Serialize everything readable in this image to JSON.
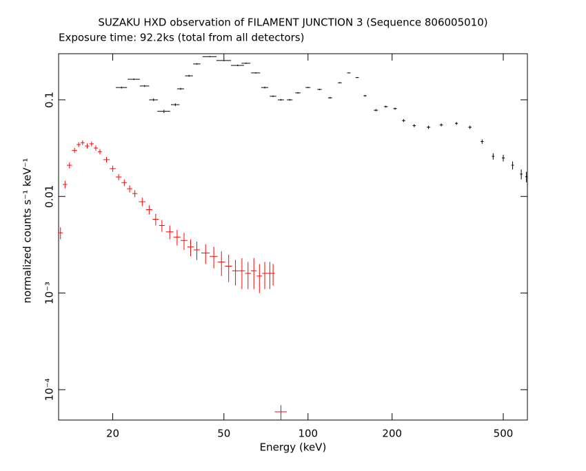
{
  "chart_data": {
    "type": "scatter",
    "title": "SUZAKU HXD observation of FILAMENT JUNCTION 3 (Sequence 806005010)",
    "subtitle": "Exposure time: 92.2ks (total from all detectors)",
    "x_label": "Energy (keV)",
    "y_label": "normalized counts s⁻¹ keV⁻¹",
    "log_x": true,
    "log_y": true,
    "grid": false,
    "xlim": [
      12.8,
      610
    ],
    "ylim": [
      4.85e-05,
      0.3
    ],
    "xticks": [
      20,
      50,
      100,
      200,
      500
    ],
    "yticks": [
      {
        "value": 0.0001,
        "label": "10⁻⁴"
      },
      {
        "value": 0.001,
        "label": "10⁻³"
      },
      0.01,
      0.1
    ],
    "series": [
      {
        "color": "#000000",
        "x": [
          21.5,
          23.8,
          26,
          28,
          30.5,
          33.5,
          35,
          37.5,
          40,
          44.5,
          50,
          56,
          60,
          65,
          70,
          75,
          80,
          86,
          92,
          100,
          110,
          120,
          130,
          140,
          150,
          160,
          175,
          190,
          205,
          220,
          240,
          270,
          300,
          340,
          380,
          420,
          460,
          500,
          540,
          580,
          605
        ],
        "values": [
          0.134,
          0.163,
          0.139,
          0.1,
          0.076,
          0.089,
          0.13,
          0.177,
          0.235,
          0.28,
          0.255,
          0.227,
          0.239,
          0.19,
          0.134,
          0.109,
          0.1,
          0.1,
          0.118,
          0.134,
          0.128,
          0.105,
          0.15,
          0.19,
          0.17,
          0.11,
          0.078,
          0.085,
          0.081,
          0.061,
          0.054,
          0.052,
          0.055,
          0.057,
          0.052,
          0.037,
          0.026,
          0.025,
          0.021,
          0.017,
          0.016
        ],
        "xerr": [
          1,
          1.2,
          1,
          1,
          1.6,
          1.2,
          1,
          1.2,
          1.2,
          2.6,
          3,
          3,
          2.2,
          2.4,
          2,
          2,
          2,
          2,
          2,
          2,
          2,
          2,
          2,
          2,
          2,
          2,
          3,
          3,
          3,
          3,
          3,
          4,
          4,
          4,
          5,
          5,
          5,
          6,
          6,
          6,
          6
        ],
        "yerr": [
          0.003,
          0.003,
          0.003,
          0.003,
          0.003,
          0.003,
          0.003,
          0.004,
          0.004,
          0.004,
          0.004,
          0.004,
          0.004,
          0.003,
          0.003,
          0.002,
          0.002,
          0.002,
          0.002,
          0.002,
          0.002,
          0.002,
          0.002,
          0.002,
          0.002,
          0.002,
          0.002,
          0.002,
          0.002,
          0.002,
          0.002,
          0.002,
          0.002,
          0.002,
          0.002,
          0.002,
          0.002,
          0.002,
          0.002,
          0.002,
          0.002
        ]
      },
      {
        "color": "#ff0000",
        "x": [
          13,
          13.5,
          14,
          14.6,
          15.1,
          15.6,
          16.2,
          16.8,
          17.4,
          18,
          19,
          20,
          21,
          22,
          23,
          24,
          25.5,
          27,
          28.5,
          30,
          32,
          34,
          36,
          38,
          40,
          43,
          46,
          49,
          52,
          55,
          58,
          61,
          64,
          67,
          70,
          73,
          75,
          80
        ],
        "values": [
          0.0042,
          0.0133,
          0.021,
          0.03,
          0.0344,
          0.036,
          0.0333,
          0.035,
          0.0317,
          0.029,
          0.024,
          0.0194,
          0.0159,
          0.0139,
          0.012,
          0.0107,
          0.0088,
          0.0073,
          0.0058,
          0.005,
          0.0043,
          0.0038,
          0.0035,
          0.003,
          0.0028,
          0.0026,
          0.0024,
          0.0021,
          0.0019,
          0.0017,
          0.0017,
          0.0016,
          0.0017,
          0.0015,
          0.0016,
          0.0016,
          0.0016,
          5.9e-05
        ],
        "xerr": [
          0.25,
          0.25,
          0.3,
          0.3,
          0.25,
          0.25,
          0.3,
          0.3,
          0.3,
          0.3,
          0.5,
          0.5,
          0.5,
          0.5,
          0.5,
          0.5,
          0.7,
          0.7,
          0.7,
          0.7,
          1,
          1,
          1,
          1,
          1,
          1.5,
          1.5,
          1.5,
          1.5,
          1.5,
          1.5,
          1.5,
          1.5,
          1.5,
          1.5,
          1.5,
          1,
          4
        ],
        "yerr": [
          0.0006,
          0.0012,
          0.0015,
          0.0018,
          0.002,
          0.002,
          0.002,
          0.002,
          0.002,
          0.0018,
          0.0016,
          0.0014,
          0.0012,
          0.0011,
          0.001,
          0.0009,
          0.0009,
          0.0008,
          0.0008,
          0.0007,
          0.0007,
          0.0007,
          0.0007,
          0.0006,
          0.0006,
          0.0006,
          0.0006,
          0.0006,
          0.0006,
          0.0005,
          0.0006,
          0.0005,
          0.0006,
          0.0005,
          0.0005,
          0.0005,
          0.0004,
          1e-05
        ]
      }
    ]
  }
}
